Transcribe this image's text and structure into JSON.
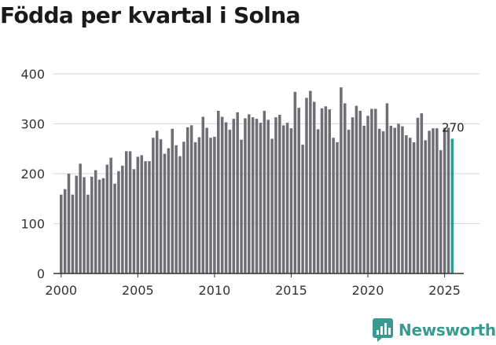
{
  "title": "Födda per kvartal i Solna",
  "brand": {
    "name": "Newsworthy",
    "icon": "newsworthy-logo-icon",
    "color": "#3a9a91"
  },
  "chart_data": {
    "type": "bar",
    "title": "Födda per kvartal i Solna",
    "xlabel": "",
    "ylabel": "",
    "ylim": [
      0,
      400
    ],
    "yticks": [
      0,
      100,
      200,
      300,
      400
    ],
    "xticks": [
      2000,
      2005,
      2010,
      2015,
      2020,
      2025
    ],
    "x_range": [
      1999.5,
      2026.25
    ],
    "grid": true,
    "start_year": 2000,
    "start_quarter": 1,
    "bar_color": "#6f6e75",
    "highlight_color": "#2a9d8f",
    "highlight_label": "270",
    "categories": [
      "2000 Q1",
      "2000 Q2",
      "2000 Q3",
      "2000 Q4",
      "2001 Q1",
      "2001 Q2",
      "2001 Q3",
      "2001 Q4",
      "2002 Q1",
      "2002 Q2",
      "2002 Q3",
      "2002 Q4",
      "2003 Q1",
      "2003 Q2",
      "2003 Q3",
      "2003 Q4",
      "2004 Q1",
      "2004 Q2",
      "2004 Q3",
      "2004 Q4",
      "2005 Q1",
      "2005 Q2",
      "2005 Q3",
      "2005 Q4",
      "2006 Q1",
      "2006 Q2",
      "2006 Q3",
      "2006 Q4",
      "2007 Q1",
      "2007 Q2",
      "2007 Q3",
      "2007 Q4",
      "2008 Q1",
      "2008 Q2",
      "2008 Q3",
      "2008 Q4",
      "2009 Q1",
      "2009 Q2",
      "2009 Q3",
      "2009 Q4",
      "2010 Q1",
      "2010 Q2",
      "2010 Q3",
      "2010 Q4",
      "2011 Q1",
      "2011 Q2",
      "2011 Q3",
      "2011 Q4",
      "2012 Q1",
      "2012 Q2",
      "2012 Q3",
      "2012 Q4",
      "2013 Q1",
      "2013 Q2",
      "2013 Q3",
      "2013 Q4",
      "2014 Q1",
      "2014 Q2",
      "2014 Q3",
      "2014 Q4",
      "2015 Q1",
      "2015 Q2",
      "2015 Q3",
      "2015 Q4",
      "2016 Q1",
      "2016 Q2",
      "2016 Q3",
      "2016 Q4",
      "2017 Q1",
      "2017 Q2",
      "2017 Q3",
      "2017 Q4",
      "2018 Q1",
      "2018 Q2",
      "2018 Q3",
      "2018 Q4",
      "2019 Q1",
      "2019 Q2",
      "2019 Q3",
      "2019 Q4",
      "2020 Q1",
      "2020 Q2",
      "2020 Q3",
      "2020 Q4",
      "2021 Q1",
      "2021 Q2",
      "2021 Q3",
      "2021 Q4",
      "2022 Q1",
      "2022 Q2",
      "2022 Q3",
      "2022 Q4",
      "2023 Q1",
      "2023 Q2",
      "2023 Q3",
      "2023 Q4",
      "2024 Q1",
      "2024 Q2",
      "2024 Q3",
      "2024 Q4",
      "2025 Q1",
      "2025 Q2",
      "2025 Q3"
    ],
    "values": [
      158,
      169,
      200,
      158,
      196,
      220,
      193,
      158,
      194,
      207,
      188,
      191,
      218,
      232,
      180,
      205,
      216,
      245,
      245,
      209,
      234,
      237,
      225,
      225,
      272,
      286,
      269,
      240,
      251,
      290,
      257,
      235,
      264,
      293,
      297,
      263,
      273,
      314,
      292,
      272,
      274,
      326,
      314,
      303,
      288,
      310,
      323,
      268,
      311,
      319,
      313,
      310,
      302,
      326,
      308,
      270,
      313,
      318,
      297,
      302,
      291,
      364,
      332,
      258,
      352,
      366,
      344,
      289,
      331,
      335,
      329,
      272,
      263,
      373,
      341,
      288,
      313,
      336,
      326,
      296,
      316,
      330,
      330,
      290,
      285,
      341,
      296,
      292,
      300,
      295,
      277,
      272,
      263,
      312,
      321,
      267,
      286,
      291,
      291,
      247,
      292,
      292,
      270
    ]
  }
}
